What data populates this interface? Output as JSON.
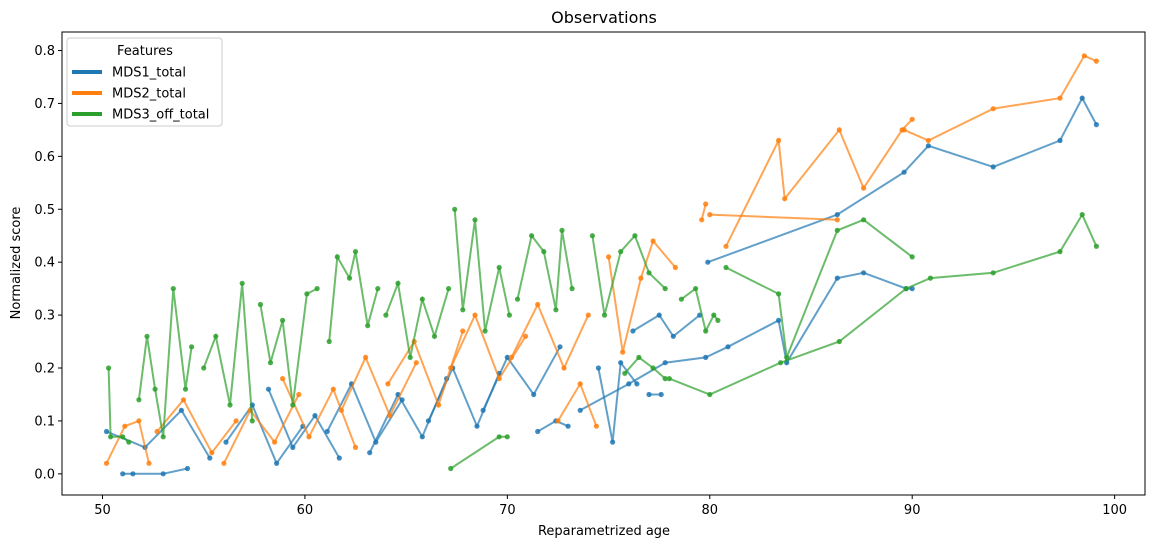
{
  "chart_data": {
    "type": "line",
    "title": "Observations",
    "xlabel": "Reparametrized age",
    "ylabel": "Normalized score",
    "xlim": [
      48,
      101.5
    ],
    "ylim": [
      -0.04,
      0.835
    ],
    "xticks": [
      50,
      60,
      70,
      80,
      90,
      100
    ],
    "yticks": [
      0.0,
      0.1,
      0.2,
      0.3,
      0.4,
      0.5,
      0.6,
      0.7,
      0.8
    ],
    "xtick_labels": [
      "50",
      "60",
      "70",
      "80",
      "90",
      "100"
    ],
    "ytick_labels": [
      "0.0",
      "0.1",
      "0.2",
      "0.3",
      "0.4",
      "0.5",
      "0.6",
      "0.7",
      "0.8"
    ],
    "grid": false,
    "legend": {
      "title": "Features",
      "position": "top-left",
      "entries": [
        "MDS1_total",
        "MDS2_total",
        "MDS3_off_total"
      ]
    },
    "series": [
      {
        "name": "MDS1_total",
        "color": "#1f77b4",
        "trajectories": [
          [
            [
              50.2,
              0.08
            ],
            [
              52.1,
              0.05
            ],
            [
              53.9,
              0.12
            ],
            [
              55.3,
              0.03
            ]
          ],
          [
            [
              51.0,
              0.0
            ],
            [
              51.5,
              0.0
            ],
            [
              53.0,
              0.0
            ],
            [
              54.2,
              0.01
            ]
          ],
          [
            [
              56.1,
              0.06
            ],
            [
              57.4,
              0.13
            ],
            [
              58.6,
              0.02
            ],
            [
              59.9,
              0.09
            ]
          ],
          [
            [
              58.2,
              0.16
            ],
            [
              59.4,
              0.05
            ],
            [
              60.5,
              0.11
            ],
            [
              61.7,
              0.03
            ]
          ],
          [
            [
              61.1,
              0.08
            ],
            [
              62.3,
              0.17
            ],
            [
              63.5,
              0.06
            ],
            [
              64.8,
              0.14
            ]
          ],
          [
            [
              63.2,
              0.04
            ],
            [
              64.6,
              0.15
            ],
            [
              65.8,
              0.07
            ],
            [
              67.0,
              0.18
            ]
          ],
          [
            [
              66.1,
              0.1
            ],
            [
              67.3,
              0.2
            ],
            [
              68.5,
              0.09
            ],
            [
              69.6,
              0.19
            ]
          ],
          [
            [
              68.8,
              0.12
            ],
            [
              70.0,
              0.22
            ],
            [
              71.3,
              0.15
            ],
            [
              72.6,
              0.24
            ]
          ],
          [
            [
              71.5,
              0.08
            ],
            [
              72.4,
              0.1
            ],
            [
              73.0,
              0.09
            ]
          ],
          [
            [
              74.5,
              0.2
            ],
            [
              75.2,
              0.06
            ],
            [
              75.6,
              0.21
            ],
            [
              76.4,
              0.17
            ]
          ],
          [
            [
              76.2,
              0.27
            ],
            [
              77.5,
              0.3
            ],
            [
              78.2,
              0.26
            ],
            [
              79.5,
              0.3
            ]
          ],
          [
            [
              77.0,
              0.15
            ],
            [
              77.6,
              0.15
            ]
          ],
          [
            [
              73.6,
              0.12
            ],
            [
              76.0,
              0.17
            ],
            [
              77.8,
              0.21
            ],
            [
              79.8,
              0.22
            ],
            [
              80.9,
              0.24
            ],
            [
              83.4,
              0.29
            ],
            [
              83.8,
              0.21
            ],
            [
              86.3,
              0.37
            ],
            [
              87.6,
              0.38
            ],
            [
              89.7,
              0.35
            ],
            [
              90.0,
              0.35
            ]
          ],
          [
            [
              79.9,
              0.4
            ],
            [
              86.3,
              0.49
            ],
            [
              89.6,
              0.57
            ],
            [
              90.8,
              0.62
            ],
            [
              94.0,
              0.58
            ],
            [
              97.3,
              0.63
            ],
            [
              98.4,
              0.71
            ],
            [
              99.1,
              0.66
            ]
          ]
        ]
      },
      {
        "name": "MDS2_total",
        "color": "#ff7f0e",
        "trajectories": [
          [
            [
              50.2,
              0.02
            ],
            [
              51.1,
              0.09
            ],
            [
              51.8,
              0.1
            ],
            [
              52.3,
              0.02
            ]
          ],
          [
            [
              52.7,
              0.08
            ],
            [
              54.0,
              0.14
            ],
            [
              55.4,
              0.04
            ],
            [
              56.6,
              0.1
            ]
          ],
          [
            [
              56.0,
              0.02
            ],
            [
              57.3,
              0.12
            ],
            [
              58.5,
              0.06
            ],
            [
              59.7,
              0.15
            ]
          ],
          [
            [
              58.9,
              0.18
            ],
            [
              60.2,
              0.07
            ],
            [
              61.4,
              0.16
            ],
            [
              62.5,
              0.05
            ]
          ],
          [
            [
              61.8,
              0.12
            ],
            [
              63.0,
              0.22
            ],
            [
              64.2,
              0.11
            ],
            [
              65.5,
              0.21
            ]
          ],
          [
            [
              64.1,
              0.17
            ],
            [
              65.4,
              0.25
            ],
            [
              66.6,
              0.13
            ],
            [
              67.8,
              0.27
            ]
          ],
          [
            [
              67.2,
              0.2
            ],
            [
              68.4,
              0.3
            ],
            [
              69.6,
              0.18
            ],
            [
              70.9,
              0.26
            ]
          ],
          [
            [
              70.2,
              0.22
            ],
            [
              71.5,
              0.32
            ],
            [
              72.8,
              0.2
            ],
            [
              74.0,
              0.3
            ]
          ],
          [
            [
              72.5,
              0.1
            ],
            [
              73.6,
              0.17
            ],
            [
              74.4,
              0.09
            ]
          ],
          [
            [
              75.0,
              0.41
            ],
            [
              75.7,
              0.23
            ],
            [
              76.6,
              0.37
            ],
            [
              77.2,
              0.44
            ],
            [
              78.3,
              0.39
            ]
          ],
          [
            [
              79.6,
              0.48
            ],
            [
              79.8,
              0.51
            ]
          ],
          [
            [
              80.0,
              0.49
            ],
            [
              86.3,
              0.48
            ]
          ],
          [
            [
              80.8,
              0.43
            ],
            [
              83.4,
              0.63
            ],
            [
              83.7,
              0.52
            ],
            [
              86.4,
              0.65
            ],
            [
              87.6,
              0.54
            ],
            [
              89.5,
              0.65
            ],
            [
              90.0,
              0.67
            ]
          ],
          [
            [
              89.6,
              0.65
            ],
            [
              90.8,
              0.63
            ],
            [
              94.0,
              0.69
            ],
            [
              97.3,
              0.71
            ],
            [
              98.5,
              0.79
            ],
            [
              99.1,
              0.78
            ]
          ]
        ]
      },
      {
        "name": "MDS3_off_total",
        "color": "#2ca02c",
        "trajectories": [
          [
            [
              50.3,
              0.2
            ],
            [
              50.4,
              0.07
            ],
            [
              51.0,
              0.07
            ],
            [
              51.3,
              0.06
            ]
          ],
          [
            [
              51.8,
              0.14
            ],
            [
              52.2,
              0.26
            ],
            [
              52.6,
              0.16
            ],
            [
              53.0,
              0.07
            ],
            [
              53.5,
              0.35
            ],
            [
              54.1,
              0.16
            ],
            [
              54.4,
              0.24
            ]
          ],
          [
            [
              55.0,
              0.2
            ],
            [
              55.6,
              0.26
            ],
            [
              56.3,
              0.13
            ],
            [
              56.9,
              0.36
            ],
            [
              57.4,
              0.1
            ]
          ],
          [
            [
              57.8,
              0.32
            ],
            [
              58.3,
              0.21
            ],
            [
              58.9,
              0.29
            ],
            [
              59.4,
              0.13
            ],
            [
              60.1,
              0.34
            ],
            [
              60.6,
              0.35
            ]
          ],
          [
            [
              61.2,
              0.25
            ],
            [
              61.6,
              0.41
            ],
            [
              62.2,
              0.37
            ],
            [
              62.5,
              0.42
            ],
            [
              63.1,
              0.28
            ],
            [
              63.6,
              0.35
            ]
          ],
          [
            [
              64.0,
              0.3
            ],
            [
              64.6,
              0.36
            ],
            [
              65.2,
              0.22
            ],
            [
              65.8,
              0.33
            ],
            [
              66.4,
              0.26
            ],
            [
              67.1,
              0.35
            ]
          ],
          [
            [
              67.4,
              0.5
            ],
            [
              67.8,
              0.31
            ],
            [
              68.4,
              0.48
            ],
            [
              68.9,
              0.27
            ],
            [
              69.6,
              0.39
            ],
            [
              70.1,
              0.3
            ]
          ],
          [
            [
              70.5,
              0.33
            ],
            [
              71.2,
              0.45
            ],
            [
              71.8,
              0.42
            ],
            [
              72.4,
              0.31
            ],
            [
              72.7,
              0.46
            ],
            [
              73.2,
              0.35
            ]
          ],
          [
            [
              74.2,
              0.45
            ],
            [
              74.8,
              0.3
            ],
            [
              75.6,
              0.42
            ],
            [
              76.3,
              0.45
            ],
            [
              77.0,
              0.38
            ],
            [
              77.8,
              0.35
            ]
          ],
          [
            [
              75.8,
              0.19
            ],
            [
              76.5,
              0.22
            ],
            [
              77.2,
              0.2
            ],
            [
              77.8,
              0.18
            ]
          ],
          [
            [
              78.6,
              0.33
            ],
            [
              79.3,
              0.35
            ],
            [
              79.8,
              0.27
            ],
            [
              80.2,
              0.3
            ],
            [
              80.4,
              0.29
            ]
          ],
          [
            [
              70.0,
              0.07
            ],
            [
              69.6,
              0.07
            ],
            [
              67.2,
              0.01
            ]
          ],
          [
            [
              78.0,
              0.18
            ],
            [
              80.0,
              0.15
            ],
            [
              83.5,
              0.21
            ],
            [
              86.4,
              0.25
            ],
            [
              89.7,
              0.35
            ],
            [
              90.9,
              0.37
            ],
            [
              94.0,
              0.38
            ],
            [
              97.3,
              0.42
            ],
            [
              98.4,
              0.49
            ],
            [
              99.1,
              0.43
            ]
          ],
          [
            [
              80.8,
              0.39
            ],
            [
              83.4,
              0.34
            ],
            [
              83.8,
              0.22
            ],
            [
              86.3,
              0.46
            ],
            [
              87.6,
              0.48
            ],
            [
              90.0,
              0.41
            ]
          ]
        ]
      }
    ]
  }
}
